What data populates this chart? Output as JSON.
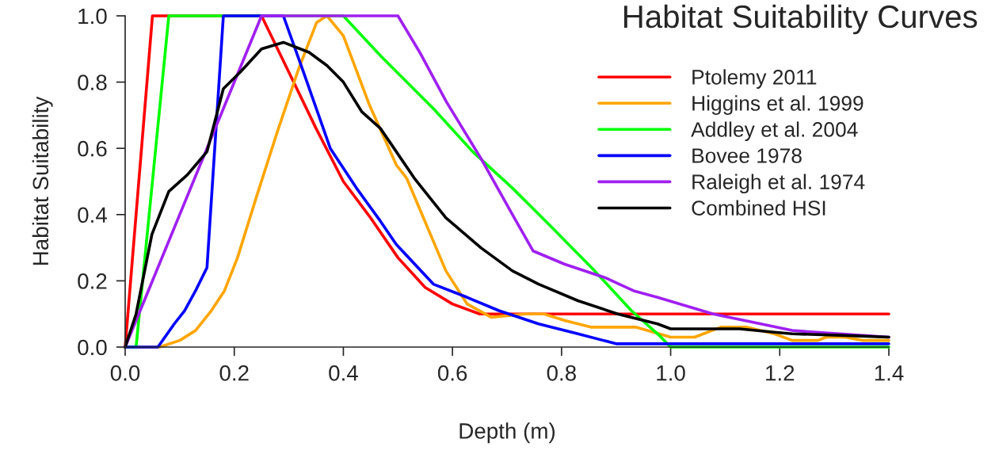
{
  "chart_data": {
    "type": "line",
    "title": "Habitat Suitability Curves",
    "xlabel": "Depth (m)",
    "ylabel": "Habitat Suitability",
    "xlim": [
      0,
      1.4
    ],
    "ylim": [
      0,
      1.0
    ],
    "xticks": [
      {
        "value": 0,
        "label": "0.0"
      },
      {
        "value": 0.2,
        "label": "0.2"
      },
      {
        "value": 0.4,
        "label": "0.4"
      },
      {
        "value": 0.6,
        "label": "0.6"
      },
      {
        "value": 0.8,
        "label": "0.8"
      },
      {
        "value": 1.0,
        "label": "1.0"
      },
      {
        "value": 1.2,
        "label": "1.2"
      },
      {
        "value": 1.4,
        "label": "1.4"
      }
    ],
    "yticks": [
      {
        "value": 0,
        "label": "0.0"
      },
      {
        "value": 0.2,
        "label": "0.2"
      },
      {
        "value": 0.4,
        "label": "0.4"
      },
      {
        "value": 0.6,
        "label": "0.6"
      },
      {
        "value": 0.8,
        "label": "0.8"
      },
      {
        "value": 1.0,
        "label": "1.0"
      }
    ],
    "grid": false,
    "legend": "top right",
    "marker": "none",
    "line_style": "solid",
    "series": [
      {
        "name": "Ptolemy 2011",
        "color": "#ff0000",
        "x": [
          0,
          0.05,
          0.25,
          0.3,
          0.35,
          0.4,
          0.45,
          0.5,
          0.55,
          0.6,
          0.65,
          1.4
        ],
        "values": [
          0,
          1,
          1,
          0.83,
          0.66,
          0.5,
          0.39,
          0.27,
          0.18,
          0.13,
          0.1,
          0.1
        ]
      },
      {
        "name": "Higgins et al. 1999",
        "color": "#ffa500",
        "x": [
          0,
          0.063,
          0.1,
          0.129,
          0.158,
          0.182,
          0.206,
          0.24,
          0.279,
          0.318,
          0.351,
          0.37,
          0.4,
          0.448,
          0.497,
          0.516,
          0.588,
          0.627,
          0.671,
          0.733,
          0.768,
          0.806,
          0.855,
          0.937,
          1.0,
          1.044,
          1.092,
          1.14,
          1.19,
          1.223,
          1.27,
          1.285,
          1.32,
          1.353,
          1.4
        ],
        "values": [
          0,
          0,
          0.02,
          0.05,
          0.11,
          0.17,
          0.27,
          0.45,
          0.65,
          0.84,
          0.98,
          1.0,
          0.94,
          0.73,
          0.55,
          0.51,
          0.23,
          0.13,
          0.09,
          0.1,
          0.1,
          0.08,
          0.06,
          0.06,
          0.03,
          0.03,
          0.06,
          0.06,
          0.04,
          0.02,
          0.02,
          0.03,
          0.03,
          0.02,
          0.02
        ]
      },
      {
        "name": "Addley et al. 2004",
        "color": "#00ff00",
        "x": [
          0,
          0.02,
          0.08,
          0.4,
          0.468,
          0.565,
          0.637,
          0.71,
          0.783,
          0.855,
          0.928,
          0.976,
          1.0,
          1.4
        ],
        "values": [
          0,
          0,
          1,
          1,
          0.88,
          0.72,
          0.59,
          0.48,
          0.36,
          0.24,
          0.11,
          0.04,
          0,
          0
        ]
      },
      {
        "name": "Bovee 1978",
        "color": "#0000ff",
        "x": [
          0,
          0.06,
          0.09,
          0.109,
          0.129,
          0.15,
          0.18,
          0.29,
          0.327,
          0.376,
          0.424,
          0.468,
          0.497,
          0.565,
          0.627,
          0.685,
          0.758,
          0.83,
          0.9,
          1.4
        ],
        "values": [
          0,
          0,
          0.07,
          0.11,
          0.17,
          0.24,
          1,
          1,
          0.83,
          0.6,
          0.48,
          0.38,
          0.31,
          0.19,
          0.15,
          0.11,
          0.07,
          0.04,
          0.01,
          0.01
        ]
      },
      {
        "name": "Raleigh et al. 1974",
        "color": "#a020f0",
        "x": [
          0,
          0.25,
          0.5,
          0.54,
          0.589,
          0.652,
          0.71,
          0.748,
          0.806,
          0.879,
          0.932,
          0.976,
          1.078,
          1.223,
          1.31,
          1.4
        ],
        "values": [
          0,
          1,
          1,
          0.89,
          0.74,
          0.57,
          0.4,
          0.29,
          0.25,
          0.21,
          0.17,
          0.15,
          0.1,
          0.05,
          0.04,
          0.03
        ]
      },
      {
        "name": "Combined HSI",
        "color": "#000000",
        "x": [
          0,
          0.02,
          0.049,
          0.08,
          0.114,
          0.15,
          0.18,
          0.211,
          0.25,
          0.29,
          0.337,
          0.37,
          0.4,
          0.434,
          0.468,
          0.497,
          0.53,
          0.588,
          0.652,
          0.71,
          0.758,
          0.83,
          0.903,
          0.976,
          1.0,
          1.126,
          1.19,
          1.223,
          1.32,
          1.4
        ],
        "values": [
          0,
          0.1,
          0.34,
          0.47,
          0.52,
          0.59,
          0.78,
          0.83,
          0.9,
          0.92,
          0.89,
          0.85,
          0.8,
          0.71,
          0.66,
          0.59,
          0.51,
          0.39,
          0.3,
          0.23,
          0.19,
          0.14,
          0.1,
          0.07,
          0.055,
          0.055,
          0.045,
          0.04,
          0.035,
          0.03
        ]
      }
    ]
  }
}
